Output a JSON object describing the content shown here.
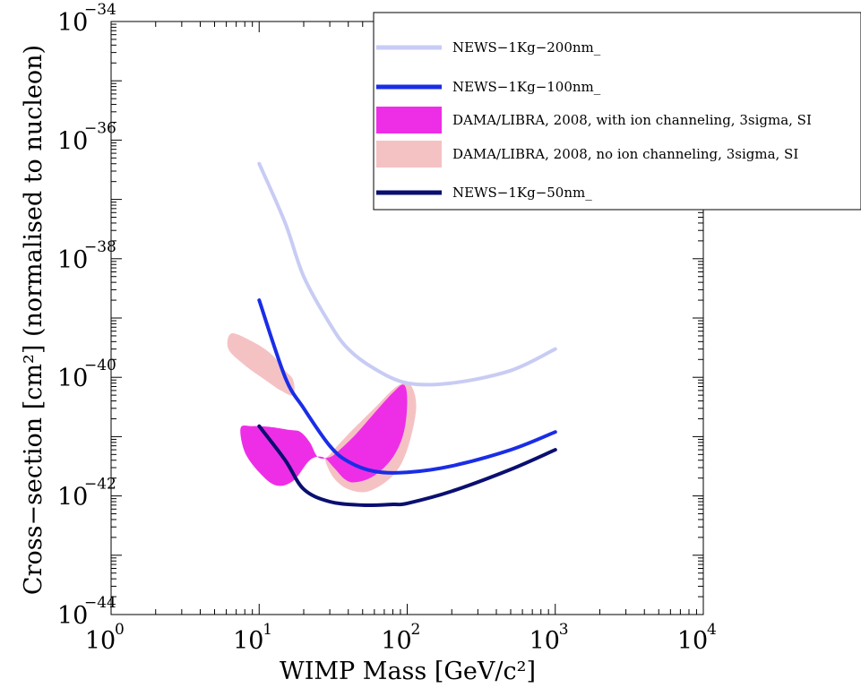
{
  "chart_data": {
    "type": "line",
    "x_scale": "log",
    "y_scale": "log",
    "xlabel": "WIMP Mass [GeV/c²]",
    "ylabel": "Cross−section [cm²] (normalised to nucleon)",
    "xlim": [
      1,
      10000
    ],
    "ylim": [
      1e-44,
      1e-34
    ],
    "x_ticks": [
      {
        "value": 1,
        "base": "10",
        "exp": "0"
      },
      {
        "value": 10,
        "base": "10",
        "exp": "1"
      },
      {
        "value": 100,
        "base": "10",
        "exp": "2"
      },
      {
        "value": 1000,
        "base": "10",
        "exp": "3"
      },
      {
        "value": 10000,
        "base": "10",
        "exp": "4"
      }
    ],
    "y_ticks": [
      {
        "value": 1e-44,
        "base": "10",
        "exp": "−44"
      },
      {
        "value": 1e-42,
        "base": "10",
        "exp": "−42"
      },
      {
        "value": 1e-40,
        "base": "10",
        "exp": "−40"
      },
      {
        "value": 1e-38,
        "base": "10",
        "exp": "−38"
      },
      {
        "value": 1e-36,
        "base": "10",
        "exp": "−36"
      },
      {
        "value": 1e-34,
        "base": "10",
        "exp": "−34"
      }
    ],
    "grid": false,
    "legend_position": "top-right",
    "series": [
      {
        "name": "NEWS−1Kg−200nm_",
        "kind": "line",
        "color": "#c8ccf4",
        "points": [
          [
            10,
            4e-37
          ],
          [
            15,
            4e-38
          ],
          [
            20,
            5e-39
          ],
          [
            30,
            8e-40
          ],
          [
            40,
            3e-40
          ],
          [
            60,
            1.4e-40
          ],
          [
            100,
            8e-41
          ],
          [
            200,
            8e-41
          ],
          [
            500,
            1.3e-40
          ],
          [
            1000,
            3e-40
          ]
        ]
      },
      {
        "name": "NEWS−1Kg−100nm_",
        "kind": "line",
        "color": "#1a2de6",
        "points": [
          [
            10,
            2e-39
          ],
          [
            15,
            1e-40
          ],
          [
            20,
            3e-41
          ],
          [
            30,
            7e-42
          ],
          [
            40,
            3.8e-42
          ],
          [
            60,
            2.6e-42
          ],
          [
            100,
            2.5e-42
          ],
          [
            200,
            3.2e-42
          ],
          [
            500,
            6e-42
          ],
          [
            1000,
            1.2e-41
          ]
        ]
      },
      {
        "name": "DAMA/LIBRA, 2008, with ion channeling, 3sigma, SI",
        "kind": "region",
        "color": "#ee2ee6",
        "outline": [
          [
            7.5,
            1.4e-41
          ],
          [
            9,
            1.5e-41
          ],
          [
            12,
            1.45e-41
          ],
          [
            16,
            1.3e-41
          ],
          [
            19,
            1.2e-41
          ],
          [
            22,
            8e-42
          ],
          [
            25,
            4.5e-42
          ],
          [
            30,
            4.5e-42
          ],
          [
            35,
            6e-42
          ],
          [
            45,
            1.1e-41
          ],
          [
            60,
            2.5e-41
          ],
          [
            80,
            5.5e-41
          ],
          [
            95,
            7.5e-41
          ],
          [
            100,
            4e-41
          ],
          [
            95,
            1.2e-41
          ],
          [
            80,
            4.5e-42
          ],
          [
            60,
            2.2e-42
          ],
          [
            45,
            1.7e-42
          ],
          [
            38,
            1.9e-42
          ],
          [
            32,
            3e-42
          ],
          [
            27,
            4.5e-42
          ],
          [
            22,
            4e-42
          ],
          [
            17,
            1.8e-42
          ],
          [
            13,
            1.5e-42
          ],
          [
            10,
            2.5e-42
          ],
          [
            8,
            5.5e-42
          ]
        ]
      },
      {
        "name": "DAMA/LIBRA, 2008, no ion channeling, 3sigma, SI",
        "kind": "region",
        "color": "#f5c2c4",
        "outline": [
          [
            6.5,
            5.5e-40
          ],
          [
            9,
            4e-40
          ],
          [
            12,
            2.5e-40
          ],
          [
            15,
            1.3e-40
          ],
          [
            17,
            9e-41
          ],
          [
            17,
            5e-41
          ],
          [
            14,
            6e-41
          ],
          [
            11,
            9e-41
          ],
          [
            8,
            1.6e-40
          ],
          [
            6.2,
            3e-40
          ],
          [
            30,
            5e-42
          ],
          [
            40,
            1.1e-41
          ],
          [
            60,
            3e-41
          ],
          [
            85,
            7e-41
          ],
          [
            105,
            7.5e-41
          ],
          [
            115,
            3e-41
          ],
          [
            100,
            6e-42
          ],
          [
            80,
            2.2e-42
          ],
          [
            55,
            1.2e-42
          ],
          [
            40,
            1.3e-42
          ],
          [
            32,
            2e-42
          ],
          [
            28,
            4e-42
          ]
        ]
      },
      {
        "name": "NEWS−1Kg−50nm_",
        "kind": "line",
        "color": "#0a0f70",
        "points": [
          [
            10,
            1.5e-41
          ],
          [
            15,
            4e-42
          ],
          [
            20,
            1.3e-42
          ],
          [
            30,
            8e-43
          ],
          [
            50,
            7e-43
          ],
          [
            80,
            7.2e-43
          ],
          [
            100,
            7.5e-43
          ],
          [
            200,
            1.2e-42
          ],
          [
            500,
            2.8e-42
          ],
          [
            1000,
            6e-42
          ]
        ]
      }
    ]
  }
}
